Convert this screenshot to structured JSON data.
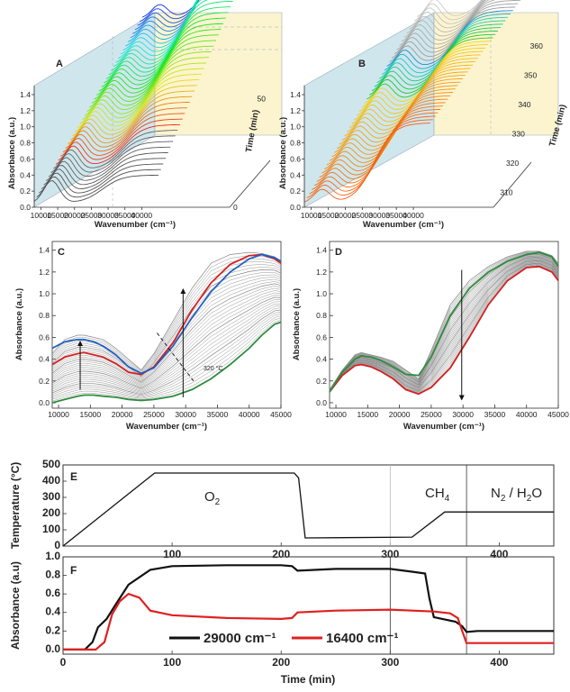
{
  "chart_data": [
    {
      "panel": "A",
      "type": "line",
      "subtype": "3d-waterfall",
      "xlabel": "Wavenumber (cm⁻¹)",
      "ylabel": "Absorbance (a.u.)",
      "zlabel": "Time (min)",
      "x_ticks": [
        "10000",
        "15000",
        "20000",
        "25000",
        "30000",
        "35000",
        "40000"
      ],
      "y_ticks": [
        "0.0",
        "0.2",
        "0.4",
        "0.6",
        "0.8",
        "1.0",
        "1.2",
        "1.4"
      ],
      "z_ticks": [
        "0",
        "50"
      ],
      "xlim": [
        8000,
        45000
      ],
      "ylim": [
        0,
        1.4
      ],
      "zlim": [
        0,
        85
      ]
    },
    {
      "panel": "B",
      "type": "line",
      "subtype": "3d-waterfall",
      "xlabel": "Wavenumber (cm⁻¹)",
      "ylabel": "Absorbance (a.u.)",
      "zlabel": "Time (min)",
      "x_ticks": [
        "10000",
        "15000",
        "20000",
        "25000",
        "30000",
        "35000",
        "40000"
      ],
      "y_ticks": [
        "0.0",
        "0.2",
        "0.4",
        "0.6",
        "0.8",
        "1.0",
        "1.2",
        "1.4"
      ],
      "z_ticks": [
        "310",
        "320",
        "330",
        "340",
        "350",
        "360"
      ],
      "xlim": [
        8000,
        45000
      ],
      "ylim": [
        0,
        1.4
      ],
      "zlim": [
        305,
        368
      ]
    },
    {
      "panel": "C",
      "type": "line",
      "xlabel": "Wavenumber (cm⁻¹)",
      "ylabel": "Absorbance (a.u.)",
      "x_ticks": [
        "10000",
        "15000",
        "20000",
        "25000",
        "30000",
        "35000",
        "40000",
        "45000"
      ],
      "y_ticks": [
        "0.0",
        "0.2",
        "0.4",
        "0.6",
        "0.8",
        "1.0",
        "1.2",
        "1.4"
      ],
      "xlim": [
        9000,
        45000
      ],
      "ylim": [
        -0.05,
        1.48
      ],
      "annotation": "320 °C",
      "x": [
        9000,
        11000,
        13000,
        14000,
        15500,
        17000,
        19000,
        21000,
        23000,
        25000,
        28000,
        31000,
        34000,
        37000,
        40000,
        42000,
        44000,
        45000
      ],
      "series": [
        {
          "color": "#2e8b3e",
          "values": [
            0.0,
            0.03,
            0.06,
            0.07,
            0.07,
            0.06,
            0.05,
            0.03,
            0.02,
            0.03,
            0.06,
            0.12,
            0.22,
            0.35,
            0.5,
            0.62,
            0.72,
            0.74
          ]
        },
        {
          "color": "#d42020",
          "values": [
            0.35,
            0.42,
            0.45,
            0.46,
            0.44,
            0.42,
            0.36,
            0.28,
            0.26,
            0.33,
            0.55,
            0.85,
            1.1,
            1.27,
            1.35,
            1.36,
            1.32,
            1.28
          ]
        },
        {
          "color": "#2060c0",
          "values": [
            0.5,
            0.56,
            0.58,
            0.58,
            0.56,
            0.52,
            0.44,
            0.33,
            0.27,
            0.32,
            0.52,
            0.78,
            1.02,
            1.2,
            1.32,
            1.36,
            1.33,
            1.3
          ]
        }
      ],
      "band": {
        "color": "#888888",
        "upper": [
          0.45,
          0.58,
          0.62,
          0.62,
          0.6,
          0.58,
          0.5,
          0.4,
          0.3,
          0.45,
          0.75,
          1.05,
          1.28,
          1.36,
          1.38,
          1.37,
          1.34,
          1.3
        ]
      }
    },
    {
      "panel": "D",
      "type": "line",
      "xlabel": "Wavenumber (cm⁻¹)",
      "ylabel": "Absorbance (a.u.)",
      "x_ticks": [
        "10000",
        "15000",
        "20000",
        "25000",
        "30000",
        "35000",
        "40000",
        "45000"
      ],
      "y_ticks": [
        "0.0",
        "0.2",
        "0.4",
        "0.6",
        "0.8",
        "1.0",
        "1.2",
        "1.4"
      ],
      "xlim": [
        9000,
        45000
      ],
      "ylim": [
        -0.05,
        1.48
      ],
      "x": [
        9000,
        11000,
        13000,
        14000,
        15500,
        17000,
        19000,
        21000,
        23000,
        25000,
        28000,
        31000,
        34000,
        37000,
        40000,
        42000,
        44000,
        45000
      ],
      "series": [
        {
          "color": "#d42020",
          "values": [
            0.1,
            0.25,
            0.34,
            0.35,
            0.33,
            0.29,
            0.22,
            0.12,
            0.08,
            0.14,
            0.32,
            0.6,
            0.9,
            1.12,
            1.24,
            1.25,
            1.2,
            1.12
          ]
        },
        {
          "color": "#2e8b3e",
          "values": [
            0.1,
            0.28,
            0.4,
            0.43,
            0.42,
            0.39,
            0.33,
            0.26,
            0.25,
            0.42,
            0.8,
            1.05,
            1.2,
            1.3,
            1.36,
            1.38,
            1.34,
            1.25
          ]
        }
      ],
      "band": {
        "color": "#888888",
        "upper": [
          0.12,
          0.3,
          0.44,
          0.46,
          0.44,
          0.42,
          0.38,
          0.3,
          0.22,
          0.48,
          0.9,
          1.12,
          1.25,
          1.34,
          1.39,
          1.39,
          1.35,
          1.28
        ]
      }
    },
    {
      "panel": "E",
      "type": "line",
      "ylabel": "Temperature (°C)",
      "y_ticks": [
        "0",
        "100",
        "200",
        "300",
        "400",
        "500"
      ],
      "x_ticks": [
        "100",
        "200",
        "300",
        "400"
      ],
      "xlim": [
        0,
        450
      ],
      "ylim": [
        0,
        500
      ],
      "labels": {
        "o2": "O",
        "o2_sub": "2",
        "ch4": "CH",
        "ch4_sub": "4",
        "n2": "N",
        "n2_sub": "2",
        "n2_rest": " / H",
        "h2o_sub": "2",
        "h2o_rest": "O"
      },
      "vlines": [
        300,
        370
      ],
      "x": [
        0,
        84,
        212,
        216,
        222,
        320,
        350,
        372,
        450
      ],
      "values": [
        0,
        450,
        450,
        420,
        50,
        55,
        210,
        210,
        210
      ]
    },
    {
      "panel": "F",
      "type": "line",
      "xlabel": "Time (min)",
      "ylabel": "Absorbance (a.u)",
      "y_ticks": [
        "0.0",
        "0.2",
        "0.4",
        "0.6",
        "0.8",
        "1.0"
      ],
      "x_ticks": [
        "0",
        "100",
        "200",
        "300",
        "400"
      ],
      "xlim": [
        0,
        450
      ],
      "ylim": [
        -0.05,
        1.0
      ],
      "vlines": [
        300,
        370
      ],
      "series": [
        {
          "name": "29000 cm⁻¹",
          "color": "#111111",
          "x": [
            0,
            20,
            27,
            32,
            40,
            48,
            60,
            80,
            100,
            150,
            200,
            210,
            215,
            250,
            300,
            320,
            332,
            336,
            340,
            360,
            366,
            370,
            380,
            450
          ],
          "values": [
            0.0,
            0.0,
            0.08,
            0.24,
            0.33,
            0.48,
            0.7,
            0.86,
            0.9,
            0.91,
            0.91,
            0.9,
            0.85,
            0.87,
            0.87,
            0.84,
            0.82,
            0.55,
            0.35,
            0.3,
            0.25,
            0.19,
            0.2,
            0.2
          ]
        },
        {
          "name": "16400 cm⁻¹",
          "color": "#e02020",
          "x": [
            0,
            30,
            38,
            45,
            52,
            60,
            70,
            80,
            100,
            150,
            200,
            210,
            215,
            250,
            300,
            340,
            355,
            362,
            366,
            370,
            380,
            450
          ],
          "values": [
            0.0,
            0.0,
            0.08,
            0.38,
            0.52,
            0.6,
            0.56,
            0.42,
            0.37,
            0.34,
            0.33,
            0.34,
            0.4,
            0.42,
            0.43,
            0.41,
            0.39,
            0.34,
            0.2,
            0.07,
            0.07,
            0.07
          ]
        }
      ]
    }
  ]
}
